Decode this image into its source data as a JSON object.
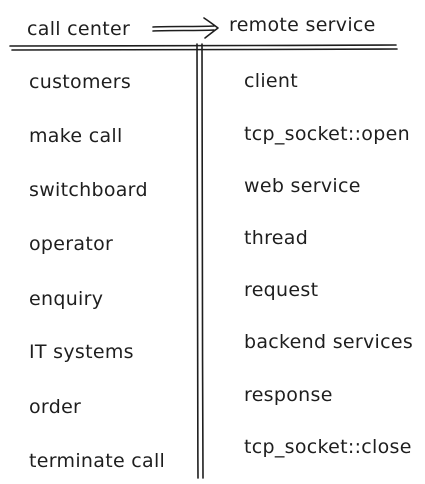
{
  "header": {
    "left": "call center",
    "right": "remote service"
  },
  "rows": [
    {
      "left": "customers",
      "right": "client"
    },
    {
      "left": "make call",
      "right": "tcp_socket::open"
    },
    {
      "left": "switchboard",
      "right": "web service"
    },
    {
      "left": "operator",
      "right": "thread"
    },
    {
      "left": "enquiry",
      "right": "request"
    },
    {
      "left": "IT systems",
      "right": "backend services"
    },
    {
      "left": "order",
      "right": "response"
    },
    {
      "left": "terminate call",
      "right": "tcp_socket::close"
    }
  ],
  "colors": {
    "ink": "#1e1e1e",
    "background": "#ffffff"
  }
}
